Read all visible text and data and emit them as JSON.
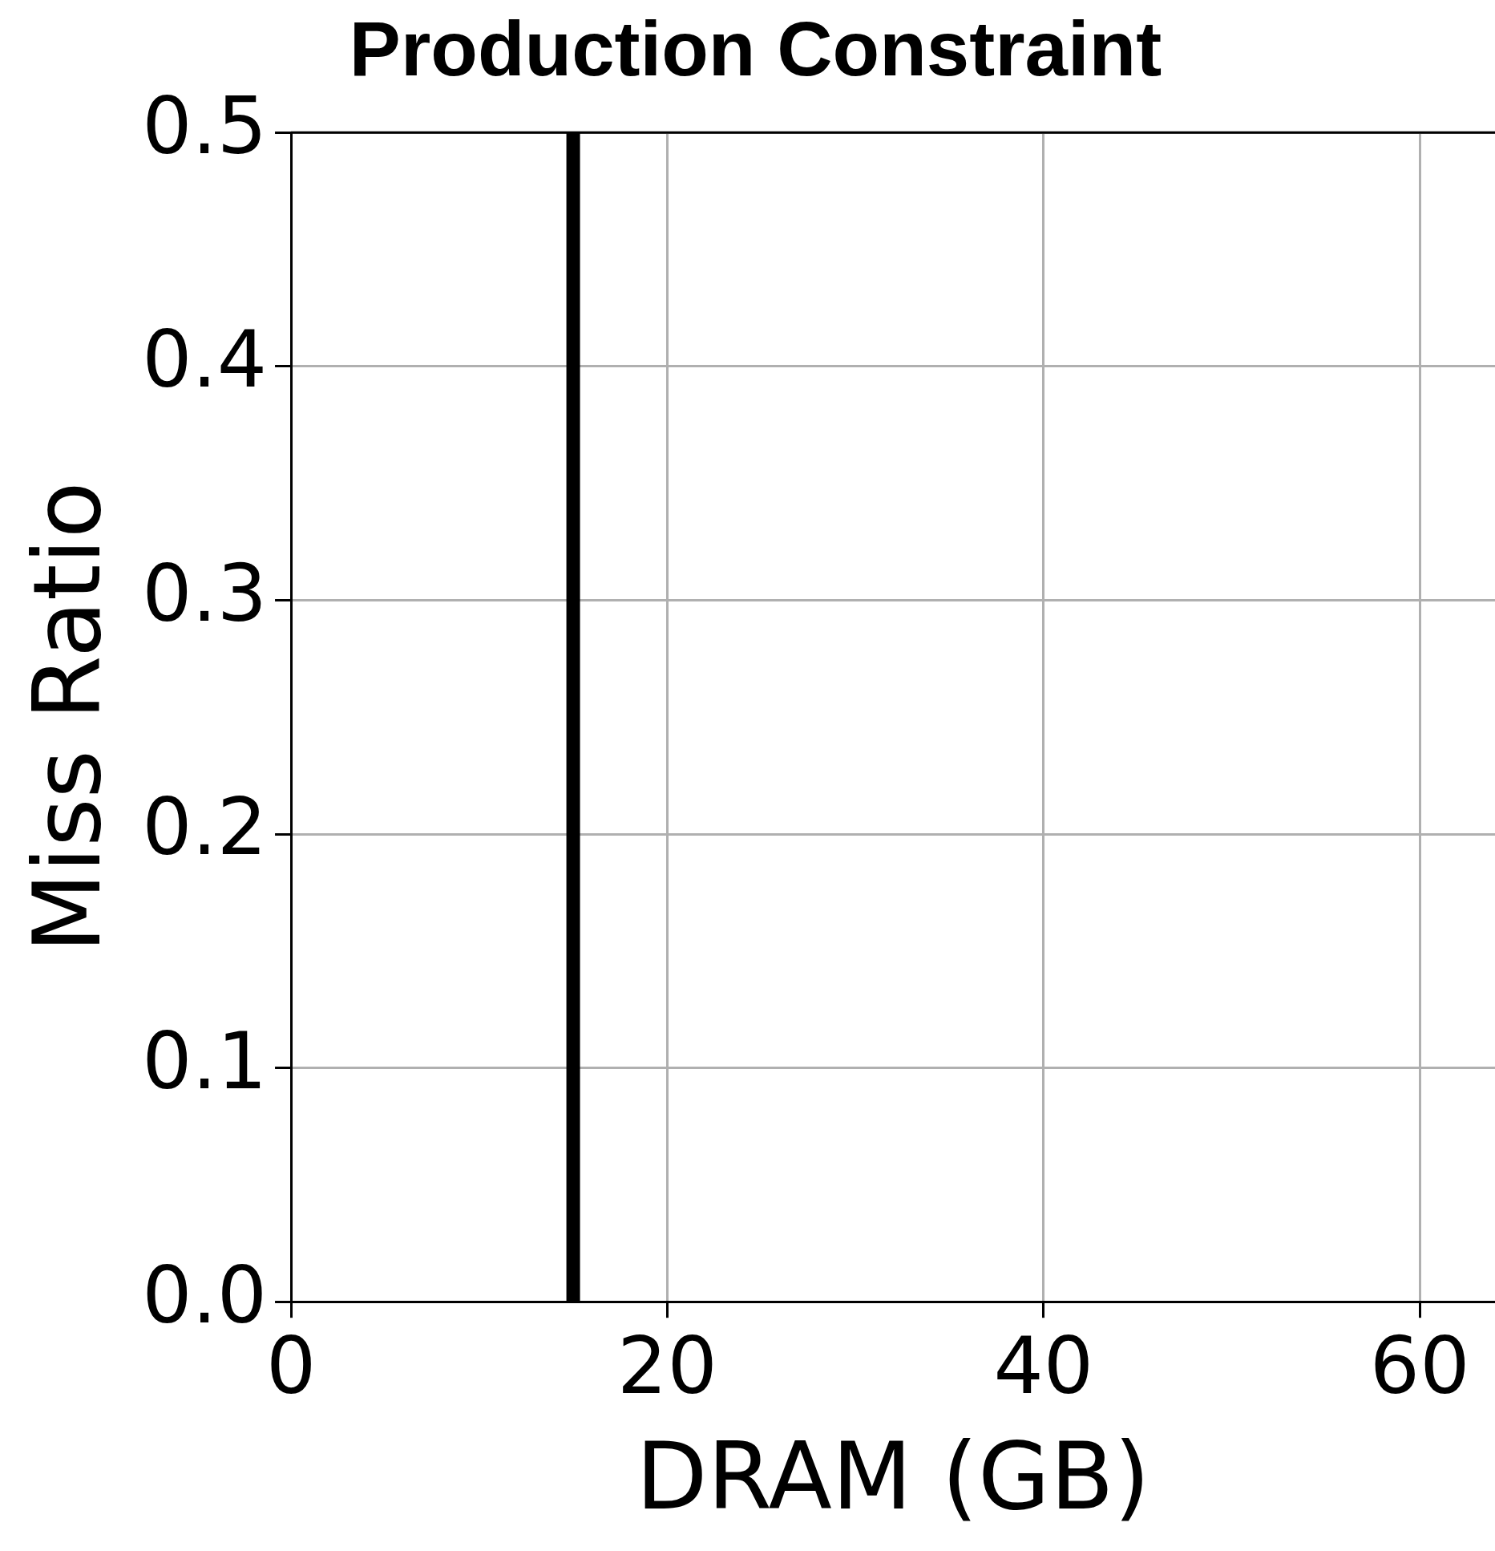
{
  "chart_data": {
    "type": "line",
    "title": "Production Constraint",
    "xlabel": "DRAM (GB)",
    "ylabel": "Miss Ratio",
    "xlim": [
      0,
      64
    ],
    "xticks": [
      0,
      20,
      40,
      60
    ],
    "ylim": [
      0,
      0.5
    ],
    "yticks": [
      {
        "value": 0,
        "label": "0.0"
      },
      0.1,
      0.2,
      0.3,
      0.4,
      0.5
    ],
    "grid": true,
    "legend": false,
    "series": [
      {
        "color": "#000000",
        "x": [
          15,
          15
        ],
        "values": [
          0,
          0.5
        ]
      }
    ]
  }
}
